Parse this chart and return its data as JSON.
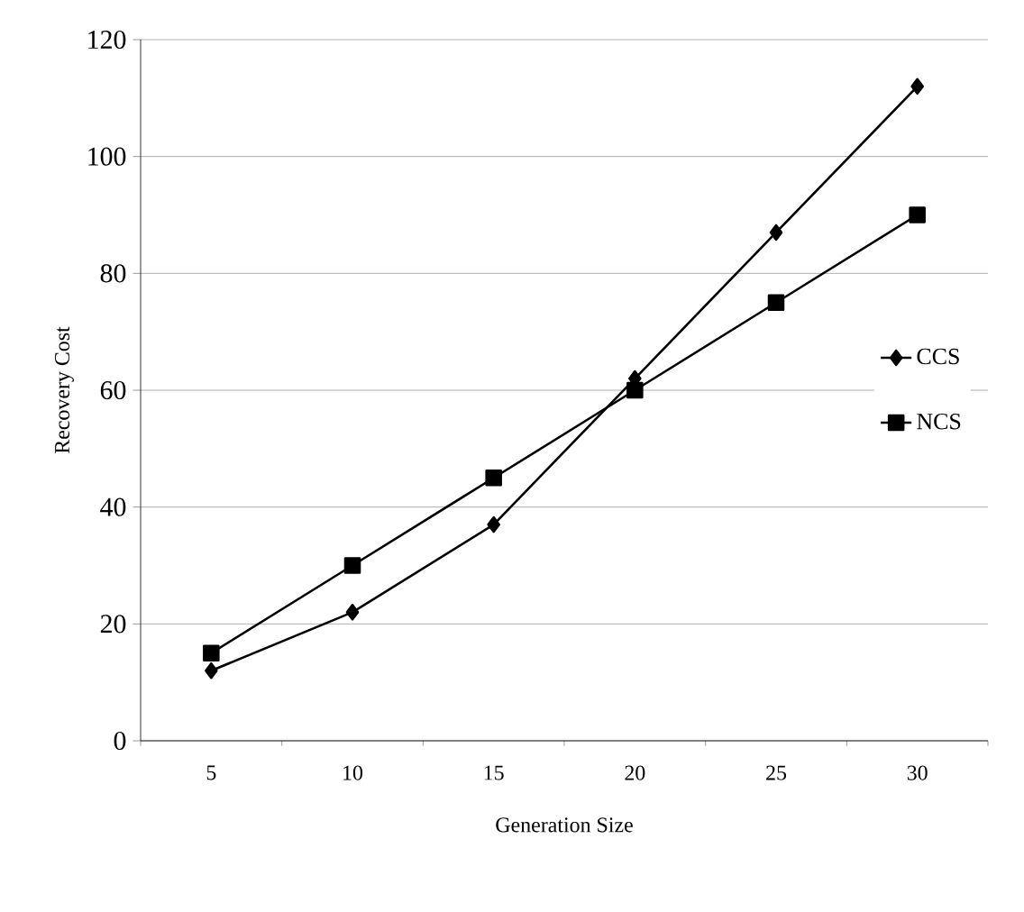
{
  "chart_data": {
    "type": "line",
    "xlabel": "Generation Size",
    "ylabel": "Recovery Cost",
    "categories": [
      "5",
      "10",
      "15",
      "20",
      "25",
      "30"
    ],
    "series": [
      {
        "name": "CCS",
        "color": "#000000",
        "marker": "diamond",
        "values": [
          12,
          22,
          37,
          62,
          87,
          112
        ]
      },
      {
        "name": "NCS",
        "color": "#000000",
        "marker": "square",
        "values": [
          15,
          30,
          45,
          60,
          75,
          90
        ]
      }
    ],
    "ylim": [
      0,
      120
    ],
    "yticks": [
      0,
      20,
      40,
      60,
      80,
      100,
      120
    ],
    "grid": "y",
    "legend": "right",
    "line_style": "solid"
  }
}
